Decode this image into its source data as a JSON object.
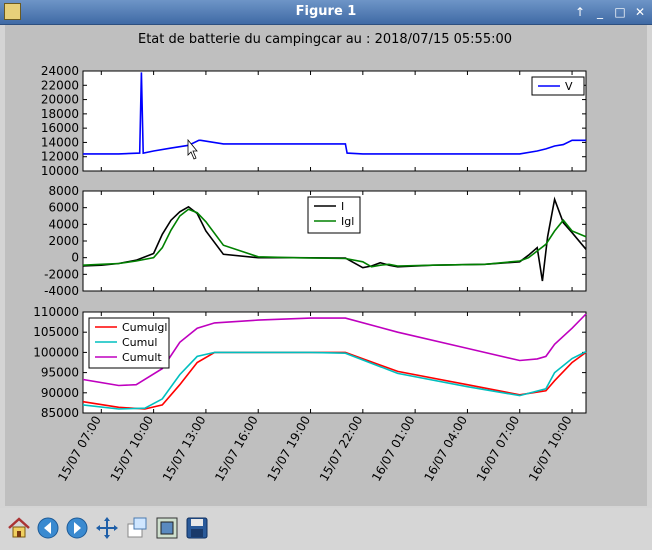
{
  "window": {
    "title": "Figure 1",
    "controls": [
      "↑",
      "_",
      "□",
      "✕"
    ]
  },
  "figure_title": "Etat de batterie du campingcar au : 2018/07/15 05:55:00",
  "toolbar": {
    "buttons": [
      "home-icon",
      "back-icon",
      "forward-icon",
      "pan-icon",
      "zoom-icon",
      "subplots-icon",
      "save-icon"
    ]
  },
  "chart_data": [
    {
      "type": "line",
      "x_ticks": [
        "15/07 07:00",
        "15/07 10:00",
        "15/07 13:00",
        "15/07 16:00",
        "15/07 19:00",
        "15/07 22:00",
        "16/07 01:00",
        "16/07 04:00",
        "16/07 07:00",
        "16/07 10:00"
      ],
      "ylim": [
        10000,
        24000
      ],
      "y_ticks": [
        "10000",
        "12000",
        "14000",
        "16000",
        "18000",
        "20000",
        "22000",
        "24000"
      ],
      "legend_location": "top-right",
      "series": [
        {
          "name": "V",
          "color": "#0000ff",
          "x": [
            5.95,
            7,
            8,
            9.2,
            9.3,
            9.4,
            10,
            11,
            12,
            12.6,
            12.7,
            14,
            16,
            18,
            21,
            21.1,
            22,
            24,
            27,
            30,
            31,
            32,
            32.5,
            33,
            33.5,
            34,
            34.8
          ],
          "values": [
            12400,
            12400,
            12400,
            12500,
            23800,
            12500,
            12800,
            13200,
            13600,
            14300,
            14300,
            13800,
            13800,
            13800,
            13800,
            12500,
            12400,
            12400,
            12400,
            12400,
            12400,
            12800,
            13100,
            13500,
            13700,
            14300,
            14300
          ]
        }
      ]
    },
    {
      "type": "line",
      "x_ticks": [
        "15/07 07:00",
        "15/07 10:00",
        "15/07 13:00",
        "15/07 16:00",
        "15/07 19:00",
        "15/07 22:00",
        "16/07 01:00",
        "16/07 04:00",
        "16/07 07:00",
        "16/07 10:00"
      ],
      "ylim": [
        -4000,
        8000
      ],
      "y_ticks": [
        "-4000",
        "-2000",
        "0",
        "2000",
        "4000",
        "6000",
        "8000"
      ],
      "legend_location": "top-center",
      "series": [
        {
          "name": "I",
          "color": "#000000",
          "x": [
            5.95,
            7,
            8,
            9,
            10,
            10.5,
            11,
            11.5,
            12,
            12.5,
            13,
            14,
            16,
            18,
            21,
            22,
            22.5,
            23,
            23.5,
            24,
            26,
            29,
            31,
            31.5,
            32,
            32.3,
            32.6,
            33,
            33.5,
            34,
            34.8
          ],
          "values": [
            -1000,
            -900,
            -700,
            -300,
            500,
            2800,
            4500,
            5500,
            6100,
            5300,
            3200,
            400,
            0,
            0,
            -50,
            -1200,
            -1000,
            -600,
            -900,
            -1100,
            -900,
            -800,
            -500,
            300,
            1200,
            -2800,
            2500,
            7000,
            4200,
            3000,
            1000
          ]
        },
        {
          "name": "Igl",
          "color": "#008000",
          "x": [
            5.95,
            7,
            8,
            9,
            10,
            10.5,
            11,
            11.5,
            12,
            12.5,
            13,
            14,
            16,
            18,
            21,
            22,
            22.5,
            23,
            23.5,
            24,
            26,
            29,
            31,
            31.5,
            32,
            32.5,
            33,
            33.5,
            34,
            34.8
          ],
          "values": [
            -900,
            -800,
            -700,
            -400,
            0,
            1200,
            3300,
            5000,
            5800,
            5400,
            4300,
            1500,
            100,
            0,
            -100,
            -500,
            -1100,
            -900,
            -800,
            -1000,
            -900,
            -800,
            -400,
            0,
            800,
            1600,
            3200,
            4500,
            3200,
            2500
          ]
        }
      ]
    },
    {
      "type": "line",
      "x_ticks": [
        "15/07 07:00",
        "15/07 10:00",
        "15/07 13:00",
        "15/07 16:00",
        "15/07 19:00",
        "15/07 22:00",
        "16/07 01:00",
        "16/07 04:00",
        "16/07 07:00",
        "16/07 10:00"
      ],
      "ylim": [
        85000,
        110000
      ],
      "y_ticks": [
        "85000",
        "90000",
        "95000",
        "100000",
        "105000",
        "110000"
      ],
      "legend_location": "top-left",
      "series": [
        {
          "name": "Cumulgl",
          "color": "#ff0000",
          "x": [
            5.95,
            8,
            9.5,
            10.5,
            11.5,
            12.5,
            13.5,
            16,
            19,
            21,
            24,
            28,
            31,
            32.5,
            33,
            34,
            34.8
          ],
          "values": [
            87800,
            86400,
            86000,
            87000,
            92000,
            97500,
            100000,
            100000,
            100000,
            100000,
            95300,
            92000,
            89500,
            90500,
            93000,
            97500,
            100000
          ]
        },
        {
          "name": "Cumul",
          "color": "#00bfbf",
          "x": [
            5.95,
            8,
            9.5,
            10.5,
            11.5,
            12.5,
            13.5,
            16,
            19,
            21,
            24,
            28,
            31,
            32.5,
            33,
            34,
            34.8
          ],
          "values": [
            87000,
            86000,
            86200,
            88500,
            94500,
            99000,
            100000,
            100000,
            100000,
            99800,
            94800,
            91500,
            89300,
            91000,
            95000,
            98500,
            100200
          ]
        },
        {
          "name": "Cumult",
          "color": "#bf00bf",
          "x": [
            5.95,
            8,
            9,
            10.5,
            11.5,
            12.5,
            13.5,
            16,
            19,
            21,
            24,
            28,
            31,
            32,
            32.5,
            33,
            34,
            34.8
          ],
          "values": [
            93300,
            91800,
            92000,
            96000,
            102500,
            106000,
            107300,
            108000,
            108500,
            108500,
            105000,
            101000,
            98000,
            98400,
            99000,
            102000,
            106000,
            109500
          ]
        }
      ]
    }
  ]
}
